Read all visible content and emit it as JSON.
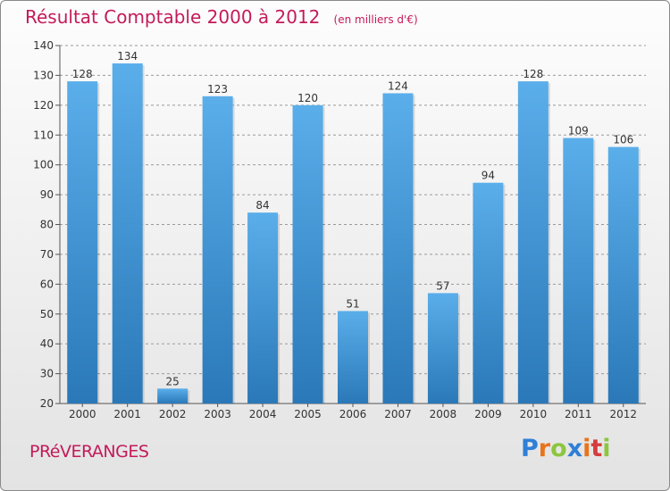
{
  "title": "Résultat Comptable 2000 à 2012",
  "subtitle": "(en milliers d'€)",
  "commune": "PRéVERANGES",
  "logo": {
    "letters": [
      "P",
      "r",
      "o",
      "x",
      "i",
      "t",
      "i"
    ],
    "colors": [
      "#2f7fd6",
      "#e8741c",
      "#8cc63f",
      "#2f7fd6",
      "#e8741c",
      "#d63c3c",
      "#8cc63f"
    ]
  },
  "colors": {
    "bar_light": "#5aaeea",
    "bar_dark": "#2a78b8",
    "title": "#c41a5a",
    "grid": "#9a9a9a"
  },
  "chart_data": {
    "type": "bar",
    "title": "Résultat Comptable 2000 à 2012",
    "subtitle": "(en milliers d'€)",
    "categories": [
      "2000",
      "2001",
      "2002",
      "2003",
      "2004",
      "2005",
      "2006",
      "2007",
      "2008",
      "2009",
      "2010",
      "2011",
      "2012"
    ],
    "values": [
      128,
      134,
      25,
      123,
      84,
      120,
      51,
      124,
      57,
      94,
      128,
      109,
      106
    ],
    "ylim": [
      20,
      140
    ],
    "yticks": [
      20,
      30,
      40,
      50,
      60,
      70,
      80,
      90,
      100,
      110,
      120,
      130,
      140
    ],
    "grid": true,
    "legend": "none"
  }
}
